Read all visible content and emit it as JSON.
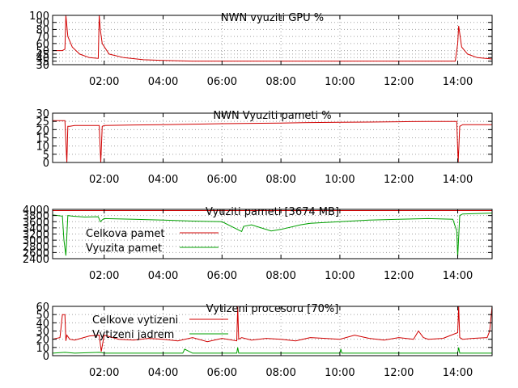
{
  "chart_data": [
    {
      "type": "line",
      "title": "NWN vyuziti GPU %",
      "xlabel": "",
      "ylabel": "",
      "ylim": [
        30,
        100
      ],
      "yticks": [
        30,
        35,
        40,
        45,
        50,
        60,
        70,
        80,
        90,
        100
      ],
      "xlim": [
        "00:15",
        "15:10"
      ],
      "xticks": [
        "02:00",
        "04:00",
        "06:00",
        "08:00",
        "10:00",
        "12:00",
        "14:00"
      ],
      "grid": true,
      "legend": "none",
      "colors": {
        "series": "#d00000"
      },
      "series": [
        {
          "name": "",
          "color": "#d00000",
          "x": [
            "00:15",
            "00:35",
            "00:40",
            "00:42",
            "00:46",
            "00:55",
            "01:10",
            "01:30",
            "01:48",
            "01:50",
            "01:52",
            "01:56",
            "02:10",
            "02:40",
            "03:20",
            "04:00",
            "05:00",
            "06:00",
            "07:00",
            "08:00",
            "09:00",
            "10:00",
            "11:00",
            "12:00",
            "13:00",
            "13:55",
            "14:00",
            "14:02",
            "14:08",
            "14:20",
            "14:40",
            "15:10"
          ],
          "values": [
            50,
            50,
            52,
            100,
            70,
            55,
            45,
            40,
            39,
            100,
            80,
            60,
            45,
            40,
            37,
            36,
            35,
            35,
            35,
            35,
            35,
            35,
            35,
            35,
            35,
            35,
            60,
            85,
            55,
            45,
            40,
            38
          ]
        }
      ]
    },
    {
      "type": "line",
      "title": "NWN Vyuziti pameti %",
      "xlabel": "",
      "ylabel": "",
      "ylim": [
        0,
        30
      ],
      "yticks": [
        0,
        5,
        10,
        15,
        20,
        25,
        30
      ],
      "xlim": [
        "00:15",
        "15:10"
      ],
      "xticks": [
        "02:00",
        "04:00",
        "06:00",
        "08:00",
        "10:00",
        "12:00",
        "14:00"
      ],
      "grid": true,
      "legend": "none",
      "colors": {
        "series": "#d00000"
      },
      "series": [
        {
          "name": "",
          "color": "#d00000",
          "x": [
            "00:15",
            "00:40",
            "00:44",
            "00:46",
            "00:50",
            "01:00",
            "01:50",
            "01:53",
            "01:56",
            "02:00",
            "03:00",
            "04:00",
            "05:00",
            "06:00",
            "07:00",
            "08:00",
            "08:45",
            "09:00",
            "10:00",
            "11:00",
            "12:00",
            "13:00",
            "13:58",
            "14:01",
            "14:04",
            "14:10",
            "15:10"
          ],
          "values": [
            25.5,
            25.5,
            0,
            22,
            22,
            22.5,
            22.5,
            0,
            22,
            22.5,
            22.8,
            23,
            23.3,
            23.6,
            23.8,
            24,
            24.2,
            24.3,
            24.5,
            24.6,
            24.8,
            25,
            25,
            0,
            22,
            23,
            23
          ]
        }
      ]
    },
    {
      "type": "line",
      "title": "Vyuziti pameti [3674 MB]",
      "xlabel": "",
      "ylabel": "",
      "ylim": [
        2400,
        4000
      ],
      "yticks": [
        2400,
        2600,
        2800,
        3000,
        3200,
        3400,
        3600,
        3800,
        4000
      ],
      "xlim": [
        "00:15",
        "15:10"
      ],
      "xticks": [
        "02:00",
        "04:00",
        "06:00",
        "08:00",
        "10:00",
        "12:00",
        "14:00"
      ],
      "grid": true,
      "legend": "top-left",
      "colors": {
        "celkova": "#d00000",
        "vyuzita": "#00a000"
      },
      "series": [
        {
          "name": "Celkova pamet",
          "color": "#d00000",
          "x": [
            "00:15",
            "15:10"
          ],
          "values": [
            3960,
            3960
          ]
        },
        {
          "name": "Vyuzita pamet",
          "color": "#00a000",
          "x": [
            "00:15",
            "00:25",
            "00:35",
            "00:38",
            "00:42",
            "00:46",
            "00:55",
            "01:20",
            "01:48",
            "01:52",
            "01:56",
            "02:00",
            "03:00",
            "04:00",
            "05:00",
            "06:00",
            "06:40",
            "06:44",
            "07:00",
            "07:40",
            "08:00",
            "08:40",
            "09:00",
            "10:00",
            "11:00",
            "12:00",
            "13:00",
            "13:50",
            "13:58",
            "14:00",
            "14:04",
            "14:10",
            "15:10"
          ],
          "values": [
            3820,
            3800,
            3780,
            3000,
            2500,
            3800,
            3780,
            3750,
            3760,
            3600,
            3660,
            3700,
            3680,
            3650,
            3620,
            3600,
            3280,
            3450,
            3500,
            3300,
            3350,
            3500,
            3550,
            3600,
            3650,
            3680,
            3700,
            3680,
            3300,
            2450,
            3800,
            3850,
            3880
          ]
        }
      ]
    },
    {
      "type": "line",
      "title": "Vytizeni procesoru [70%]",
      "xlabel": "",
      "ylabel": "",
      "ylim": [
        0,
        60
      ],
      "yticks": [
        0,
        10,
        20,
        30,
        40,
        50,
        60
      ],
      "xlim": [
        "00:15",
        "15:10"
      ],
      "xticks": [
        "02:00",
        "04:00",
        "06:00",
        "08:00",
        "10:00",
        "12:00",
        "14:00"
      ],
      "grid": true,
      "legend": "top-left",
      "colors": {
        "celkove": "#d00000",
        "jadrem": "#00a000"
      },
      "series": [
        {
          "name": "Celkove vytizeni",
          "color": "#d00000",
          "x": [
            "00:15",
            "00:30",
            "00:35",
            "00:40",
            "00:42",
            "00:44",
            "00:50",
            "01:00",
            "01:30",
            "01:50",
            "01:54",
            "02:00",
            "02:30",
            "03:00",
            "03:30",
            "04:00",
            "04:30",
            "05:00",
            "05:30",
            "06:00",
            "06:30",
            "06:32",
            "06:34",
            "06:40",
            "07:00",
            "07:30",
            "08:00",
            "08:30",
            "09:00",
            "09:30",
            "10:00",
            "10:30",
            "11:00",
            "11:30",
            "12:00",
            "12:30",
            "12:40",
            "12:50",
            "13:00",
            "13:30",
            "14:00",
            "14:02",
            "14:04",
            "14:10",
            "14:30",
            "15:00",
            "15:05",
            "15:10"
          ],
          "values": [
            20,
            22,
            50,
            50,
            18,
            25,
            20,
            19,
            24,
            25,
            5,
            25,
            20,
            19,
            21,
            20,
            18,
            22,
            17,
            21,
            18,
            60,
            20,
            22,
            19,
            21,
            20,
            18,
            22,
            21,
            20,
            25,
            21,
            19,
            22,
            20,
            30,
            22,
            20,
            21,
            28,
            60,
            22,
            20,
            21,
            22,
            30,
            60
          ]
        },
        {
          "name": "Vytizeni jadrem",
          "color": "#00a000",
          "x": [
            "00:15",
            "00:40",
            "01:00",
            "01:50",
            "02:00",
            "03:00",
            "04:00",
            "04:40",
            "04:44",
            "05:00",
            "06:00",
            "06:30",
            "06:32",
            "06:34",
            "07:00",
            "08:00",
            "09:00",
            "10:00",
            "10:02",
            "10:04",
            "11:00",
            "12:00",
            "13:00",
            "14:00",
            "14:02",
            "14:04",
            "15:00",
            "15:10"
          ],
          "values": [
            3,
            4,
            3,
            4,
            3,
            3,
            3,
            3,
            8,
            3,
            3,
            3,
            10,
            3,
            3,
            3,
            3,
            3,
            8,
            3,
            3,
            3,
            3,
            3,
            10,
            3,
            3,
            3
          ]
        }
      ]
    }
  ]
}
